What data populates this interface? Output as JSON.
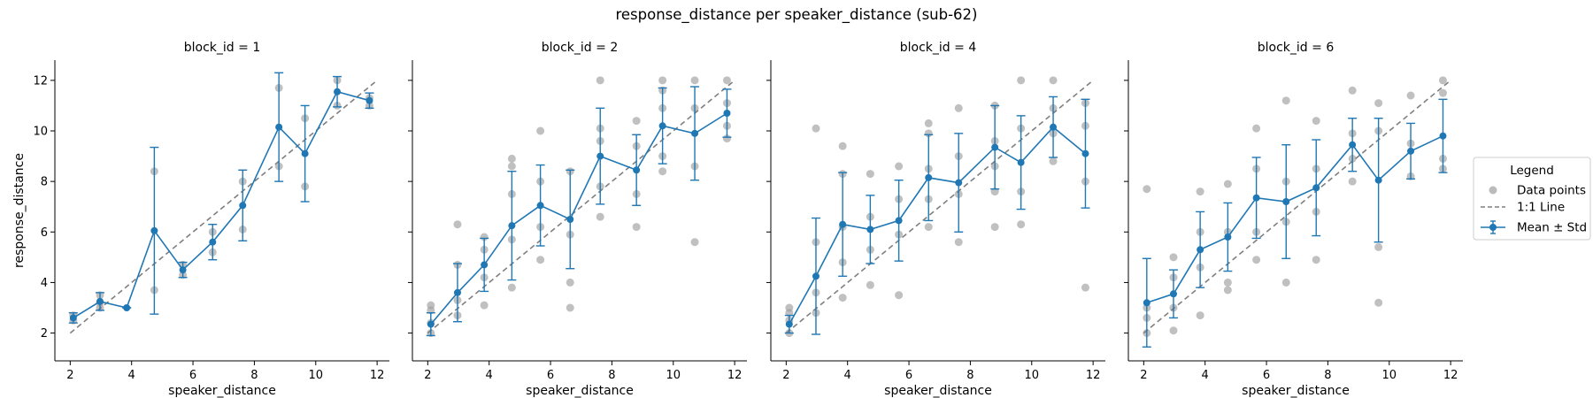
{
  "figure": {
    "title": "response_distance per speaker_distance (sub-62)"
  },
  "legend": {
    "title": "Legend",
    "entries": [
      {
        "label": "Data points",
        "kind": "scatter",
        "color": "#9e9e9e"
      },
      {
        "label": "1:1 Line",
        "kind": "dashed",
        "color": "#7f7f7f"
      },
      {
        "label": "Mean ± Std",
        "kind": "errorbar",
        "color": "#1f77b4"
      }
    ]
  },
  "colors": {
    "mean": "#1f77b4",
    "points": "#9e9e9e",
    "identity_line": "#7f7f7f"
  },
  "chart_data": [
    {
      "type": "scatter",
      "title": "block_id = 1",
      "xlabel": "speaker_distance",
      "ylabel": "response_distance",
      "xlim": [
        1.5,
        12.4
      ],
      "ylim": [
        0.9,
        12.8
      ],
      "xticks": [
        2,
        4,
        6,
        8,
        10,
        12
      ],
      "yticks": [
        2,
        4,
        6,
        8,
        10,
        12
      ],
      "identity_line": [
        [
          2,
          2
        ],
        [
          12,
          12
        ]
      ],
      "series": [
        {
          "name": "Mean ± Std",
          "x": [
            2.1,
            2.97,
            3.84,
            4.74,
            5.67,
            6.64,
            7.62,
            8.8,
            9.65,
            10.7,
            11.75
          ],
          "mean": [
            2.6,
            3.25,
            3.0,
            6.05,
            4.5,
            5.6,
            7.05,
            10.15,
            9.1,
            11.55,
            11.2
          ],
          "std": [
            0.2,
            0.35,
            0.0,
            3.3,
            0.3,
            0.7,
            1.4,
            2.15,
            1.9,
            0.6,
            0.3
          ]
        },
        {
          "name": "Data points",
          "x": [
            2.1,
            2.1,
            2.97,
            2.97,
            2.97,
            4.74,
            4.74,
            5.67,
            5.67,
            6.64,
            6.64,
            7.62,
            7.62,
            8.8,
            8.8,
            9.65,
            9.65,
            10.7,
            10.7,
            11.75,
            11.75
          ],
          "y": [
            2.5,
            2.7,
            3.0,
            3.2,
            3.5,
            3.7,
            8.4,
            4.3,
            4.7,
            5.2,
            6.0,
            6.1,
            8.0,
            8.6,
            11.7,
            7.8,
            10.5,
            11.0,
            12.0,
            11.0,
            11.3
          ]
        }
      ]
    },
    {
      "type": "scatter",
      "title": "block_id = 2",
      "xlabel": "speaker_distance",
      "ylabel": "",
      "xlim": [
        1.5,
        12.4
      ],
      "ylim": [
        0.9,
        12.8
      ],
      "xticks": [
        2,
        4,
        6,
        8,
        10,
        12
      ],
      "yticks": [
        2,
        4,
        6,
        8,
        10,
        12
      ],
      "identity_line": [
        [
          2,
          2
        ],
        [
          12,
          12
        ]
      ],
      "series": [
        {
          "name": "Mean ± Std",
          "x": [
            2.1,
            2.97,
            3.84,
            4.74,
            5.67,
            6.64,
            7.62,
            8.8,
            9.65,
            10.7,
            11.75
          ],
          "mean": [
            2.35,
            3.6,
            4.7,
            6.25,
            7.05,
            6.5,
            9.0,
            8.45,
            10.2,
            9.9,
            10.7
          ],
          "std": [
            0.45,
            1.15,
            1.05,
            2.15,
            1.6,
            1.95,
            1.9,
            1.4,
            1.5,
            1.85,
            0.95
          ]
        },
        {
          "name": "Data points",
          "x": [
            2.1,
            2.1,
            2.1,
            2.1,
            2.97,
            2.97,
            2.97,
            2.97,
            3.84,
            3.84,
            3.84,
            3.84,
            4.74,
            4.74,
            4.74,
            4.74,
            4.74,
            5.67,
            5.67,
            5.67,
            5.67,
            6.64,
            6.64,
            6.64,
            6.64,
            7.62,
            7.62,
            7.62,
            7.62,
            7.62,
            8.8,
            8.8,
            8.8,
            8.8,
            9.65,
            9.65,
            9.65,
            9.65,
            9.65,
            10.7,
            10.7,
            10.7,
            10.7,
            11.75,
            11.75,
            11.75,
            11.75
          ],
          "y": [
            2.0,
            2.4,
            2.9,
            3.1,
            2.7,
            3.3,
            4.7,
            6.3,
            3.1,
            4.2,
            5.3,
            5.8,
            3.8,
            5.7,
            7.5,
            8.6,
            8.9,
            4.9,
            6.2,
            8.0,
            10.0,
            3.0,
            4.0,
            5.9,
            8.4,
            6.6,
            7.8,
            9.6,
            10.1,
            12.0,
            6.2,
            7.5,
            9.4,
            10.4,
            8.4,
            9.0,
            10.9,
            11.6,
            12.0,
            5.6,
            8.6,
            10.9,
            12.0,
            9.7,
            10.2,
            11.1,
            12.0
          ]
        }
      ]
    },
    {
      "type": "scatter",
      "title": "block_id = 4",
      "xlabel": "speaker_distance",
      "ylabel": "",
      "xlim": [
        1.5,
        12.4
      ],
      "ylim": [
        0.9,
        12.8
      ],
      "xticks": [
        2,
        4,
        6,
        8,
        10,
        12
      ],
      "yticks": [
        2,
        4,
        6,
        8,
        10,
        12
      ],
      "identity_line": [
        [
          2,
          2
        ],
        [
          12,
          12
        ]
      ],
      "series": [
        {
          "name": "Mean ± Std",
          "x": [
            2.1,
            2.97,
            3.84,
            4.74,
            5.67,
            6.64,
            7.62,
            8.8,
            9.65,
            10.7,
            11.75
          ],
          "mean": [
            2.35,
            4.25,
            6.3,
            6.1,
            6.45,
            8.15,
            7.95,
            9.35,
            8.75,
            10.15,
            9.1
          ],
          "std": [
            0.35,
            2.3,
            2.05,
            1.35,
            1.6,
            1.7,
            1.95,
            1.65,
            1.85,
            1.2,
            2.15
          ]
        },
        {
          "name": "Data points",
          "x": [
            2.1,
            2.1,
            2.1,
            2.1,
            2.97,
            2.97,
            2.97,
            2.97,
            3.84,
            3.84,
            3.84,
            3.84,
            3.84,
            4.74,
            4.74,
            4.74,
            4.74,
            5.67,
            5.67,
            5.67,
            5.67,
            6.64,
            6.64,
            6.64,
            6.64,
            6.64,
            7.62,
            7.62,
            7.62,
            7.62,
            8.8,
            8.8,
            8.8,
            8.8,
            8.8,
            9.65,
            9.65,
            9.65,
            9.65,
            10.7,
            10.7,
            10.7,
            10.7,
            11.75,
            11.75,
            11.75,
            11.75
          ],
          "y": [
            2.0,
            2.5,
            2.8,
            3.0,
            2.8,
            3.6,
            5.6,
            10.1,
            3.4,
            4.8,
            6.2,
            8.3,
            9.4,
            3.9,
            5.3,
            6.6,
            8.3,
            3.5,
            5.9,
            7.3,
            8.6,
            6.2,
            7.3,
            8.5,
            9.9,
            10.3,
            5.6,
            7.5,
            9.0,
            10.9,
            6.2,
            7.6,
            8.6,
            9.6,
            11.0,
            6.3,
            7.6,
            10.1,
            12.0,
            8.8,
            9.9,
            10.9,
            12.0,
            3.8,
            8.0,
            10.2,
            11.1
          ]
        }
      ]
    },
    {
      "type": "scatter",
      "title": "block_id = 6",
      "xlabel": "speaker_distance",
      "ylabel": "",
      "xlim": [
        1.5,
        12.4
      ],
      "ylim": [
        0.9,
        12.8
      ],
      "xticks": [
        2,
        4,
        6,
        8,
        10,
        12
      ],
      "yticks": [
        2,
        4,
        6,
        8,
        10,
        12
      ],
      "identity_line": [
        [
          2,
          2
        ],
        [
          12,
          12
        ]
      ],
      "series": [
        {
          "name": "Mean ± Std",
          "x": [
            2.1,
            2.97,
            3.84,
            4.74,
            5.67,
            6.64,
            7.62,
            8.8,
            9.65,
            10.7,
            11.75
          ],
          "mean": [
            3.2,
            3.55,
            5.3,
            5.8,
            7.35,
            7.2,
            7.75,
            9.45,
            8.05,
            9.2,
            9.8
          ],
          "std": [
            1.75,
            0.95,
            1.5,
            1.35,
            1.6,
            2.25,
            1.9,
            1.05,
            2.45,
            1.1,
            1.45
          ]
        },
        {
          "name": "Data points",
          "x": [
            2.1,
            2.1,
            2.1,
            2.1,
            2.97,
            2.97,
            2.97,
            2.97,
            3.84,
            3.84,
            3.84,
            3.84,
            4.74,
            4.74,
            4.74,
            4.74,
            5.67,
            5.67,
            5.67,
            5.67,
            6.64,
            6.64,
            6.64,
            6.64,
            7.62,
            7.62,
            7.62,
            7.62,
            8.8,
            8.8,
            8.8,
            8.8,
            9.65,
            9.65,
            9.65,
            9.65,
            10.7,
            10.7,
            10.7,
            11.75,
            11.75,
            11.75,
            11.75
          ],
          "y": [
            2.0,
            2.6,
            3.0,
            7.7,
            2.1,
            3.0,
            4.2,
            5.0,
            2.7,
            4.6,
            6.0,
            7.6,
            3.7,
            4.0,
            6.0,
            7.9,
            4.9,
            6.0,
            8.5,
            10.1,
            4.0,
            6.4,
            8.0,
            11.2,
            4.9,
            6.8,
            8.5,
            10.4,
            8.0,
            8.9,
            9.9,
            11.6,
            3.2,
            5.4,
            10.0,
            11.1,
            8.2,
            9.5,
            11.4,
            8.5,
            8.9,
            11.5,
            12.0
          ]
        }
      ]
    }
  ]
}
